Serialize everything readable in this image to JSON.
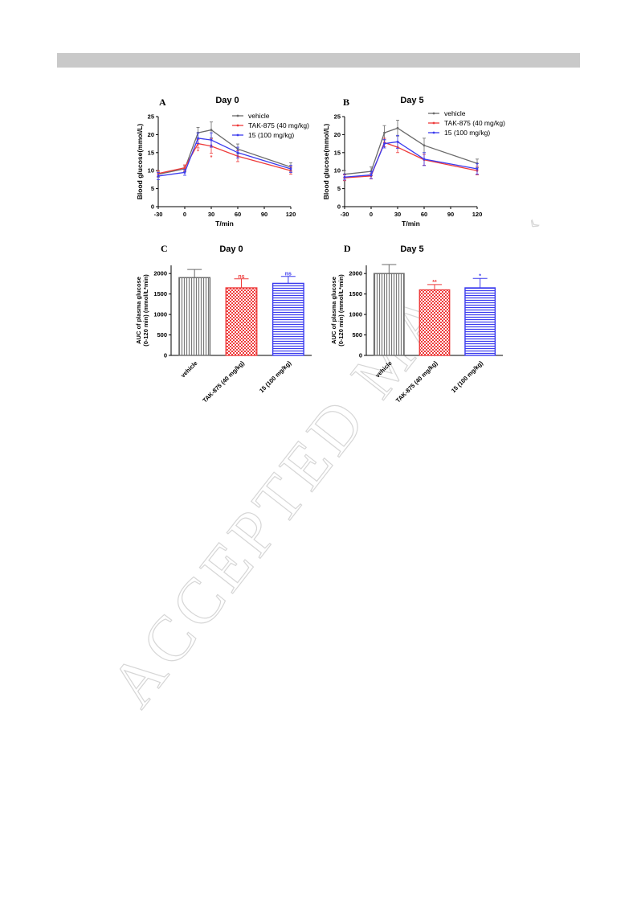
{
  "colors": {
    "vehicle": "#6b6b6b",
    "tak875": "#ee3b3b",
    "cmpd15": "#3b3bee",
    "header_bar": "#c9c9c9",
    "watermark_outline": "#d6d6d6"
  },
  "watermark": {
    "text": "ACCEPTED MA",
    "tail": "‹"
  },
  "chart_data": [
    {
      "id": "A",
      "type": "line",
      "panel_label": "A",
      "title": "Day 0",
      "xlabel": "T/min",
      "ylabel": "Blood glucose(mmol/L)",
      "x": [
        -30,
        0,
        15,
        30,
        60,
        120
      ],
      "xlim": [
        -30,
        120
      ],
      "xticks": [
        -30,
        0,
        30,
        60,
        90,
        120
      ],
      "ylim": [
        0,
        25
      ],
      "yticks": [
        0,
        5,
        10,
        15,
        20,
        25
      ],
      "legend_position": "top-right",
      "series": [
        {
          "name": "vehicle",
          "color_key": "vehicle",
          "values": [
            9.0,
            10.5,
            20.5,
            21.3,
            16.0,
            11.0
          ],
          "errors": [
            0.8,
            0.8,
            1.5,
            2.2,
            1.4,
            1.2
          ]
        },
        {
          "name": "TAK-875 (40 mg/kg)",
          "color_key": "tak875",
          "values": [
            9.2,
            10.8,
            17.5,
            16.8,
            14.0,
            10.0
          ],
          "errors": [
            0.8,
            0.8,
            1.2,
            2.0,
            1.5,
            1.0
          ]
        },
        {
          "name": "15 (100 mg/kg)",
          "color_key": "cmpd15",
          "values": [
            8.5,
            9.5,
            19.0,
            18.5,
            15.0,
            10.5
          ],
          "errors": [
            1.0,
            0.8,
            1.5,
            2.0,
            1.5,
            1.0
          ]
        }
      ],
      "annotations": [
        {
          "text": "*",
          "x": 15,
          "y": 15.5,
          "color_key": "tak875"
        },
        {
          "text": "*",
          "x": 30,
          "y": 13.8,
          "color_key": "tak875"
        },
        {
          "text": "*",
          "x": 30,
          "y": 17.0,
          "color_key": "cmpd15"
        }
      ]
    },
    {
      "id": "B",
      "type": "line",
      "panel_label": "B",
      "title": "Day 5",
      "xlabel": "T/min",
      "ylabel": "Blood glucose(mmol/L)",
      "x": [
        -30,
        0,
        15,
        30,
        60,
        120
      ],
      "xlim": [
        -30,
        120
      ],
      "xticks": [
        -30,
        0,
        30,
        60,
        90,
        120
      ],
      "ylim": [
        0,
        25
      ],
      "yticks": [
        0,
        5,
        10,
        15,
        20,
        25
      ],
      "legend_position": "top-right",
      "series": [
        {
          "name": "vehicle",
          "color_key": "vehicle",
          "values": [
            9.0,
            9.8,
            20.5,
            21.8,
            17.0,
            12.0
          ],
          "errors": [
            1.0,
            1.2,
            2.0,
            2.2,
            2.0,
            1.2
          ]
        },
        {
          "name": "TAK-875 (40 mg/kg)",
          "color_key": "tak875",
          "values": [
            8.0,
            8.5,
            17.8,
            16.5,
            13.0,
            10.0
          ],
          "errors": [
            0.8,
            0.8,
            1.2,
            1.5,
            1.5,
            1.2
          ]
        },
        {
          "name": "15 (100 mg/kg)",
          "color_key": "cmpd15",
          "values": [
            8.2,
            8.8,
            17.5,
            18.0,
            13.2,
            10.5
          ],
          "errors": [
            0.8,
            1.0,
            1.2,
            1.8,
            1.8,
            1.5
          ]
        }
      ],
      "annotations": []
    },
    {
      "id": "C",
      "type": "bar",
      "panel_label": "C",
      "title": "Day 0",
      "ylabel_lines": [
        "AUC of plasma glucose",
        "(0-120 min) (mmol/L*min)"
      ],
      "categories": [
        "vehicle",
        "TAK-875 (40 mg/kg)",
        "15 (100 mg/kg)"
      ],
      "values": [
        1900,
        1650,
        1760
      ],
      "errors": [
        200,
        220,
        170
      ],
      "sig_labels": [
        "",
        "ns",
        "ns"
      ],
      "color_keys": [
        "vehicle",
        "tak875",
        "cmpd15"
      ],
      "patterns": [
        "vlines",
        "checker",
        "hlines"
      ],
      "ylim": [
        0,
        2200
      ],
      "yticks": [
        0,
        500,
        1000,
        1500,
        2000
      ]
    },
    {
      "id": "D",
      "type": "bar",
      "panel_label": "D",
      "title": "Day 5",
      "ylabel_lines": [
        "AUC of plasma glucose",
        "(0-120 min) (mmol/L*min)"
      ],
      "categories": [
        "vehicle",
        "TAK-875 (40 mg/kg)",
        "15 (100 mg/kg)"
      ],
      "values": [
        2000,
        1600,
        1650
      ],
      "errors": [
        220,
        130,
        230
      ],
      "sig_labels": [
        "",
        "**",
        "*"
      ],
      "color_keys": [
        "vehicle",
        "tak875",
        "cmpd15"
      ],
      "patterns": [
        "vlines",
        "checker",
        "hlines"
      ],
      "ylim": [
        0,
        2200
      ],
      "yticks": [
        0,
        500,
        1000,
        1500,
        2000
      ]
    }
  ]
}
